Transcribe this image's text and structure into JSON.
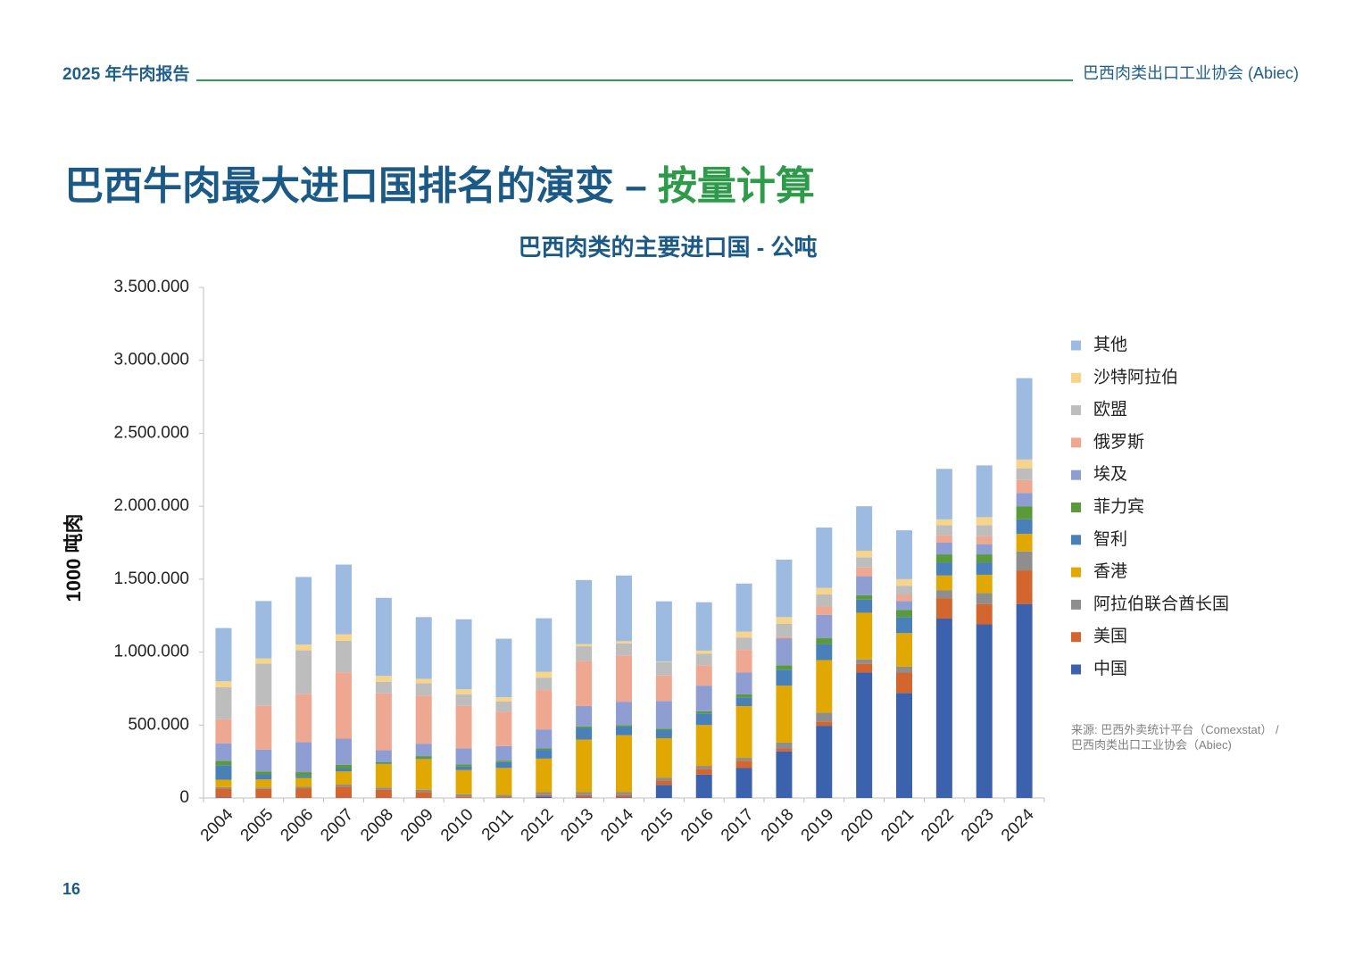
{
  "header": {
    "left": "2025 年牛肉报告",
    "right": "巴西肉类出口工业协会 (Abiec)"
  },
  "title": {
    "main": "巴西牛肉最大进口国排名的演变 – ",
    "highlight": "按量计算"
  },
  "source": [
    "来源: 巴西外卖统计平台（Comexstat） /",
    "巴西肉类出口工业协会（Abiec)"
  ],
  "page_number": "16",
  "chart_data": {
    "type": "stacked_bar",
    "title": "巴西肉类的主要进口国 - 公吨",
    "y_label": "1000 吨肉",
    "categories": [
      "2004",
      "2005",
      "2006",
      "2007",
      "2008",
      "2009",
      "2010",
      "2011",
      "2012",
      "2013",
      "2014",
      "2015",
      "2016",
      "2017",
      "2018",
      "2019",
      "2020",
      "2021",
      "2022",
      "2023",
      "2024"
    ],
    "ylim": [
      0,
      3500000
    ],
    "yticks": [
      0,
      {
        "value": 500000,
        "label": "500.000"
      },
      {
        "value": 1000000,
        "label": "1.000.000"
      },
      {
        "value": 1500000,
        "label": "1.500.000"
      },
      {
        "value": 2000000,
        "label": "2.000.000"
      },
      {
        "value": 2500000,
        "label": "2.500.000"
      },
      {
        "value": 3000000,
        "label": "3.000.000"
      },
      {
        "value": 3500000,
        "label": "3.500.000"
      }
    ],
    "grid": false,
    "legend": "right",
    "series": [
      {
        "name": "中国",
        "color": "#3d62ad",
        "values": [
          5000,
          2000,
          2000,
          2000,
          2000,
          2000,
          1000,
          1000,
          10000,
          5000,
          5000,
          90000,
          160000,
          205000,
          320000,
          495000,
          860000,
          720000,
          1230000,
          1190000,
          1330000
        ]
      },
      {
        "name": "美国",
        "color": "#d2662e",
        "values": [
          60000,
          60000,
          65000,
          75000,
          55000,
          40000,
          10000,
          5000,
          10000,
          15000,
          15000,
          30000,
          40000,
          50000,
          20000,
          30000,
          60000,
          140000,
          140000,
          140000,
          230000
        ]
      },
      {
        "name": "阿拉伯联合酋长国",
        "color": "#8e8e8e",
        "values": [
          10000,
          10000,
          10000,
          15000,
          15000,
          15000,
          15000,
          15000,
          20000,
          20000,
          20000,
          20000,
          20000,
          20000,
          40000,
          60000,
          30000,
          40000,
          55000,
          75000,
          130000
        ]
      },
      {
        "name": "香港",
        "color": "#e0a800",
        "values": [
          50000,
          55000,
          60000,
          90000,
          160000,
          210000,
          165000,
          185000,
          230000,
          360000,
          390000,
          270000,
          280000,
          355000,
          390000,
          360000,
          320000,
          230000,
          100000,
          125000,
          120000
        ]
      },
      {
        "name": "智利",
        "color": "#4a80b8",
        "values": [
          100000,
          35000,
          15000,
          20000,
          5000,
          5000,
          25000,
          40000,
          60000,
          80000,
          60000,
          55000,
          80000,
          60000,
          110000,
          110000,
          90000,
          110000,
          90000,
          85000,
          100000
        ]
      },
      {
        "name": "菲力宾",
        "color": "#5a9a3a",
        "values": [
          30000,
          20000,
          25000,
          25000,
          10000,
          15000,
          15000,
          10000,
          10000,
          10000,
          10000,
          10000,
          15000,
          20000,
          30000,
          40000,
          30000,
          50000,
          55000,
          55000,
          90000
        ]
      },
      {
        "name": "埃及",
        "color": "#8e9dd2",
        "values": [
          120000,
          150000,
          205000,
          180000,
          80000,
          85000,
          110000,
          100000,
          130000,
          140000,
          160000,
          190000,
          175000,
          150000,
          185000,
          160000,
          130000,
          60000,
          80000,
          70000,
          90000
        ]
      },
      {
        "name": "俄罗斯",
        "color": "#eea891",
        "values": [
          165000,
          300000,
          330000,
          455000,
          390000,
          330000,
          290000,
          235000,
          270000,
          310000,
          315000,
          175000,
          140000,
          155000,
          10000,
          60000,
          60000,
          45000,
          50000,
          55000,
          90000
        ]
      },
      {
        "name": "欧盟",
        "color": "#bdbdbd",
        "values": [
          220000,
          290000,
          300000,
          215000,
          80000,
          85000,
          80000,
          70000,
          85000,
          100000,
          85000,
          90000,
          80000,
          85000,
          90000,
          80000,
          70000,
          60000,
          70000,
          75000,
          80000
        ]
      },
      {
        "name": "沙特阿拉伯",
        "color": "#f6d48a",
        "values": [
          40000,
          35000,
          40000,
          45000,
          40000,
          30000,
          35000,
          30000,
          40000,
          15000,
          15000,
          5000,
          20000,
          40000,
          45000,
          45000,
          45000,
          45000,
          40000,
          55000,
          60000
        ]
      },
      {
        "name": "其他",
        "color": "#9dbbe0",
        "values": [
          365000,
          393000,
          463000,
          478000,
          535000,
          423000,
          479000,
          401000,
          367000,
          439000,
          450000,
          413000,
          332000,
          330000,
          394000,
          414000,
          305000,
          335000,
          346000,
          355000,
          558000
        ]
      }
    ]
  }
}
